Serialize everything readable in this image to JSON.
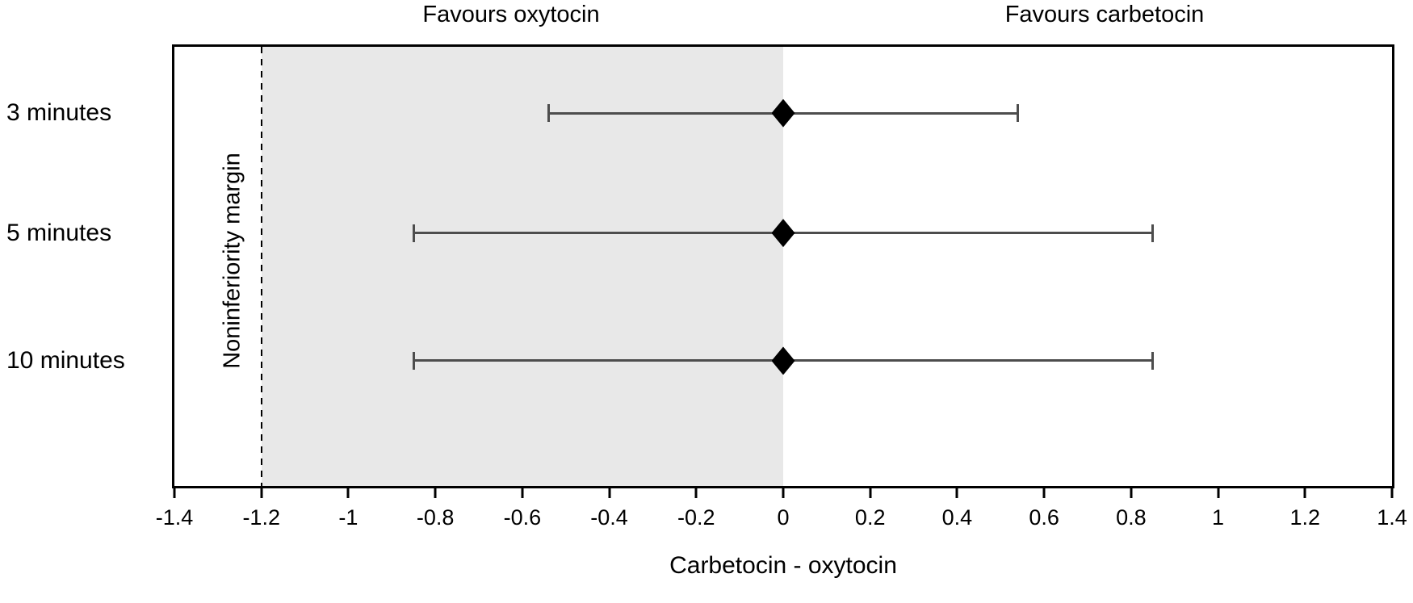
{
  "chart_data": {
    "type": "scatter",
    "subtype": "forest-noninferiority-plot",
    "title": "",
    "xlabel": "Carbetocin - oxytocin",
    "ylabel": "",
    "xlim": [
      -1.4,
      1.4
    ],
    "grid": false,
    "legend": false,
    "categories": [
      "3 minutes",
      "5 minutes",
      "10 minutes"
    ],
    "series": [
      {
        "name": "Difference in means with 95% CI",
        "marker": "diamond",
        "points": [
          {
            "category": "3 minutes",
            "value": 0,
            "ci_low": -0.54,
            "ci_high": 0.54
          },
          {
            "category": "5 minutes",
            "value": 0,
            "ci_low": -0.85,
            "ci_high": 0.85
          },
          {
            "category": "10 minutes",
            "value": 0,
            "ci_low": -0.85,
            "ci_high": 0.85
          }
        ]
      }
    ],
    "xticks": [
      {
        "value": -1.4,
        "label": "-1.4"
      },
      {
        "value": -1.2,
        "label": "-1.2"
      },
      {
        "value": -1.0,
        "label": "-1"
      },
      {
        "value": -0.8,
        "label": "-0.8"
      },
      {
        "value": -0.6,
        "label": "-0.6"
      },
      {
        "value": -0.4,
        "label": "-0.4"
      },
      {
        "value": -0.2,
        "label": "-0.2"
      },
      {
        "value": 0,
        "label": "0"
      },
      {
        "value": 0.2,
        "label": "0.2"
      },
      {
        "value": 0.4,
        "label": "0.4"
      },
      {
        "value": 0.6,
        "label": "0.6"
      },
      {
        "value": 0.8,
        "label": "0.8"
      },
      {
        "value": 1.0,
        "label": "1"
      },
      {
        "value": 1.2,
        "label": "1.2"
      },
      {
        "value": 1.4,
        "label": "1.4"
      }
    ],
    "noninferiority_margin": -1.2,
    "shaded_region": [
      -1.2,
      0
    ],
    "annotations": {
      "favours_left": "Favours oxytocin",
      "favours_right": "Favours carbetocin",
      "margin_label": "Noninferiority margin"
    },
    "colors": {
      "marker": "#000000",
      "error_bar": "#4d4d4d",
      "shade": "#e8e8e8",
      "axis": "#000000"
    }
  }
}
